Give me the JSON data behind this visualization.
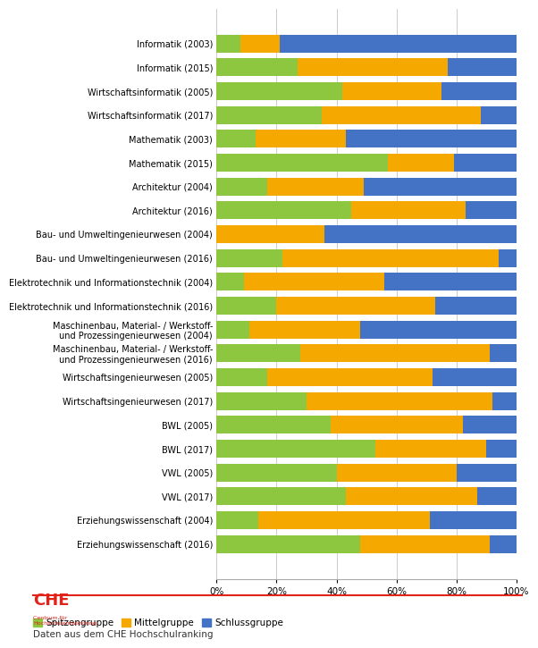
{
  "categories": [
    "Informatik (2003)",
    "Informatik (2015)",
    "Wirtschaftsinformatik (2005)",
    "Wirtschaftsinformatik (2017)",
    "Mathematik (2003)",
    "Mathematik (2015)",
    "Architektur (2004)",
    "Architektur (2016)",
    "Bau- und Umweltingenieurwesen (2004)",
    "Bau- und Umweltingenieurwesen (2016)",
    "Elektrotechnik und Informationstechnik (2004)",
    "Elektrotechnik und Informationstechnik (2016)",
    "Maschinenbau, Material- / Werkstoff-\nund Prozessingenieurwesen (2004)",
    "Maschinenbau, Material- / Werkstoff-\nund Prozessingenieurwesen (2016)",
    "Wirtschaftsingenieurwesen (2005)",
    "Wirtschaftsingenieurwesen (2017)",
    "BWL (2005)",
    "BWL (2017)",
    "VWL (2005)",
    "VWL (2017)",
    "Erziehungswissenschaft (2004)",
    "Erziehungswissenschaft (2016)"
  ],
  "spitzengruppe": [
    8,
    27,
    42,
    35,
    13,
    57,
    17,
    45,
    0,
    22,
    9,
    20,
    11,
    28,
    17,
    30,
    38,
    53,
    40,
    43,
    14,
    48
  ],
  "mittelgruppe": [
    13,
    50,
    33,
    53,
    30,
    22,
    32,
    38,
    36,
    72,
    47,
    53,
    37,
    63,
    55,
    62,
    44,
    37,
    40,
    44,
    57,
    43
  ],
  "schlussgruppe": [
    79,
    23,
    25,
    12,
    57,
    21,
    51,
    17,
    64,
    6,
    44,
    27,
    52,
    9,
    28,
    8,
    18,
    10,
    20,
    13,
    29,
    9
  ],
  "colors": {
    "spitzengruppe": "#8dc63f",
    "mittelgruppe": "#f5a800",
    "schlussgruppe": "#4472c4"
  },
  "legend_labels": [
    "Spitzengruppe",
    "Mittelgruppe",
    "Schlussgruppe"
  ],
  "footnote": "Daten aus dem CHE Hochschulranking",
  "bg_color": "#ffffff",
  "bar_height": 0.75,
  "axes_bg": "#ffffff",
  "border_color": "#cccccc"
}
